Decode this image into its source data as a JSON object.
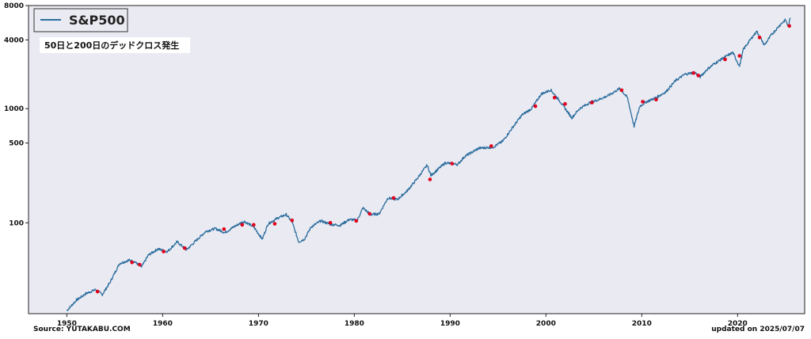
{
  "chart_data": {
    "type": "line",
    "title": "",
    "xlabel": "",
    "ylabel": "",
    "yscale": "log",
    "xlim": [
      1946,
      2027
    ],
    "ylim": [
      16,
      8000
    ],
    "grid": false,
    "legend_position": "top-left",
    "annotation": "50日と200日のデッドクロス発生",
    "x_ticks": [
      1950,
      1960,
      1970,
      1980,
      1990,
      2000,
      2010,
      2020
    ],
    "x_tick_labels": [
      "1950",
      "1960",
      "1970",
      "1980",
      "1990",
      "2000",
      "2010",
      "2020"
    ],
    "y_ticks": [
      100,
      500,
      1000,
      4000,
      8000
    ],
    "y_tick_labels": [
      "100",
      "500",
      "1000",
      "4000",
      "8000"
    ],
    "series": [
      {
        "name": "S&P500",
        "color": "#2c6e9e",
        "x": [
          1950.0,
          1951.0,
          1952.0,
          1953.0,
          1953.7,
          1954.5,
          1955.5,
          1956.5,
          1957.0,
          1957.8,
          1958.5,
          1959.5,
          1960.5,
          1961.5,
          1962.5,
          1963.5,
          1964.5,
          1965.5,
          1966.5,
          1967.5,
          1968.5,
          1969.5,
          1970.4,
          1971.0,
          1972.0,
          1972.9,
          1973.5,
          1974.2,
          1974.8,
          1975.5,
          1976.5,
          1977.5,
          1978.5,
          1979.5,
          1980.3,
          1980.9,
          1981.7,
          1982.6,
          1983.5,
          1984.5,
          1985.5,
          1986.5,
          1987.6,
          1988.0,
          1989.5,
          1990.8,
          1991.5,
          1993.0,
          1994.5,
          1995.5,
          1996.5,
          1997.5,
          1998.5,
          1999.5,
          2000.5,
          2001.5,
          2002.7,
          2003.5,
          2004.5,
          2005.5,
          2006.5,
          2007.7,
          2008.5,
          2009.2,
          2009.8,
          2010.5,
          2011.5,
          2012.5,
          2013.5,
          2014.5,
          2015.5,
          2016.1,
          2016.8,
          2017.5,
          2018.5,
          2019.5,
          2020.2,
          2020.6,
          2021.5,
          2022.0,
          2022.8,
          2023.5,
          2024.5,
          2025.0,
          2025.3,
          2025.5
        ],
        "values": [
          17,
          21,
          24,
          26,
          23.5,
          30,
          44,
          47,
          46,
          41,
          52,
          59,
          56,
          68,
          58,
          70,
          84,
          89,
          82,
          93,
          103,
          92,
          72,
          98,
          110,
          118,
          102,
          68,
          72,
          92,
          104,
          97,
          95,
          107,
          105,
          135,
          118,
          120,
          165,
          160,
          190,
          240,
          320,
          260,
          335,
          325,
          380,
          450,
          460,
          520,
          680,
          880,
          1000,
          1340,
          1460,
          1150,
          830,
          1000,
          1120,
          1200,
          1300,
          1500,
          1250,
          700,
          1050,
          1150,
          1250,
          1400,
          1750,
          2000,
          2080,
          1900,
          2200,
          2450,
          2780,
          3100,
          2350,
          3300,
          4200,
          4750,
          3600,
          4400,
          5500,
          6000,
          5200,
          6250
        ]
      }
    ],
    "cross_markers": {
      "color": "#e0001b",
      "x": [
        1953.2,
        1956.8,
        1957.6,
        1960.1,
        1962.3,
        1966.4,
        1968.3,
        1969.5,
        1971.7,
        1973.5,
        1977.5,
        1980.2,
        1981.6,
        1984.1,
        1987.9,
        1990.2,
        1994.3,
        1998.9,
        2000.9,
        2002.0,
        2004.8,
        2007.9,
        2010.1,
        2011.5,
        2015.4,
        2015.9,
        2018.7,
        2020.2,
        2022.3,
        2025.4
      ],
      "values": [
        25,
        45,
        43,
        56,
        60,
        88,
        96,
        96,
        98,
        105,
        100,
        104,
        120,
        165,
        240,
        330,
        470,
        1050,
        1250,
        1100,
        1130,
        1450,
        1150,
        1200,
        2050,
        1950,
        2700,
        2900,
        4200,
        5300
      ]
    }
  },
  "footer": {
    "source": "Source: YUTAKABU.COM",
    "updated": "updated on 2025/07/07"
  }
}
